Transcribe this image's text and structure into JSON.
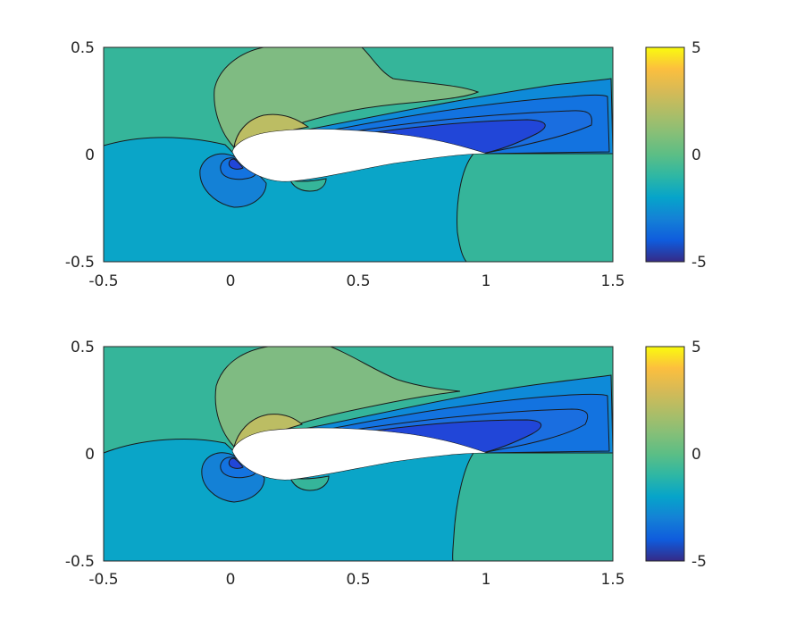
{
  "chart_data": [
    {
      "type": "contourf",
      "title": "",
      "xlabel": "",
      "ylabel": "",
      "xlim": [
        -0.5,
        1.5
      ],
      "ylim": [
        -0.5,
        0.5
      ],
      "x_ticks": [
        "-0.5",
        "0",
        "0.5",
        "1",
        "1.5"
      ],
      "y_ticks": [
        "-0.5",
        "0",
        "0.5"
      ],
      "colorbar": {
        "limits": [
          -5,
          5
        ],
        "ticks": [
          "-5",
          "0",
          "5"
        ],
        "colormap": "parula"
      },
      "levels": [
        {
          "value": -3.5,
          "color": "#2146d8"
        },
        {
          "value": -2.5,
          "color": "#1373e0"
        },
        {
          "value": -1.5,
          "color": "#0e8ad8"
        },
        {
          "value": -0.5,
          "color": "#0aa5c8"
        },
        {
          "value": 0.5,
          "color": "#35b59a"
        },
        {
          "value": 1.5,
          "color": "#7fbb82"
        },
        {
          "value": 2.5,
          "color": "#bcbd63"
        }
      ],
      "background_color": "#35b59a",
      "airfoil": {
        "leading_edge_x": 0.0,
        "trailing_edge_x": 1.0,
        "fill": "#ffffff"
      }
    },
    {
      "type": "contourf",
      "title": "",
      "xlabel": "",
      "ylabel": "",
      "xlim": [
        -0.5,
        1.5
      ],
      "ylim": [
        -0.5,
        0.5
      ],
      "x_ticks": [
        "-0.5",
        "0",
        "0.5",
        "1",
        "1.5"
      ],
      "y_ticks": [
        "-0.5",
        "0",
        "0.5"
      ],
      "colorbar": {
        "limits": [
          -5,
          5
        ],
        "ticks": [
          "-5",
          "0",
          "5"
        ],
        "colormap": "parula"
      },
      "levels": [
        {
          "value": -3.5,
          "color": "#2146d8"
        },
        {
          "value": -2.5,
          "color": "#1373e0"
        },
        {
          "value": -1.5,
          "color": "#0e8ad8"
        },
        {
          "value": -0.5,
          "color": "#0aa5c8"
        },
        {
          "value": 0.5,
          "color": "#35b59a"
        },
        {
          "value": 1.5,
          "color": "#7fbb82"
        },
        {
          "value": 2.5,
          "color": "#bcbd63"
        }
      ],
      "background_color": "#35b59a",
      "airfoil": {
        "leading_edge_x": 0.0,
        "trailing_edge_x": 1.0,
        "fill": "#ffffff"
      }
    }
  ]
}
